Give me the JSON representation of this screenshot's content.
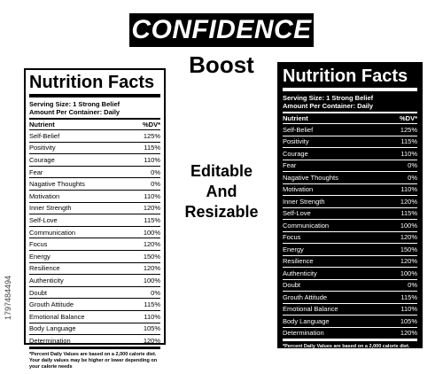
{
  "banner": "CONFIDENCE",
  "subtitle": "Boost",
  "mid_text": [
    "Editable",
    "And",
    "Resizable"
  ],
  "side_id": "1797484494",
  "label": {
    "title": "Nutrition Facts",
    "serving_size": "Serving Size: 1 Strong Belief",
    "amount_per_container": "Amount Per Container: Daily",
    "col_nutrient": "Nutrient",
    "col_dv": "%DV*",
    "rows": [
      {
        "name": "Self-Belief",
        "dv": "125%"
      },
      {
        "name": "Positivity",
        "dv": "115%"
      },
      {
        "name": "Courage",
        "dv": "110%"
      },
      {
        "name": "Fear",
        "dv": "0%"
      },
      {
        "name": "Nagative Thoughts",
        "dv": "0%"
      },
      {
        "name": "Motivation",
        "dv": "110%"
      },
      {
        "name": "Inner Strength",
        "dv": "120%"
      },
      {
        "name": "Self-Love",
        "dv": "115%"
      },
      {
        "name": "Communication",
        "dv": "100%"
      },
      {
        "name": "Focus",
        "dv": "120%"
      },
      {
        "name": "Energy",
        "dv": "150%"
      },
      {
        "name": "Resilience",
        "dv": "120%"
      },
      {
        "name": "Authenticity",
        "dv": "100%"
      },
      {
        "name": "Doubt",
        "dv": "0%"
      },
      {
        "name": "Grouth Attitude",
        "dv": "115%"
      },
      {
        "name": "Emotional Balance",
        "dv": "110%"
      },
      {
        "name": "Body Language",
        "dv": "105%"
      },
      {
        "name": "Determination",
        "dv": "120%"
      }
    ],
    "footnote": "*Percent Daily Values are based on a 2,000 calorie diet. Your daily values may be higher or lower depending on your calorie needs"
  },
  "colors": {
    "dark": "#000000",
    "light": "#ffffff"
  }
}
